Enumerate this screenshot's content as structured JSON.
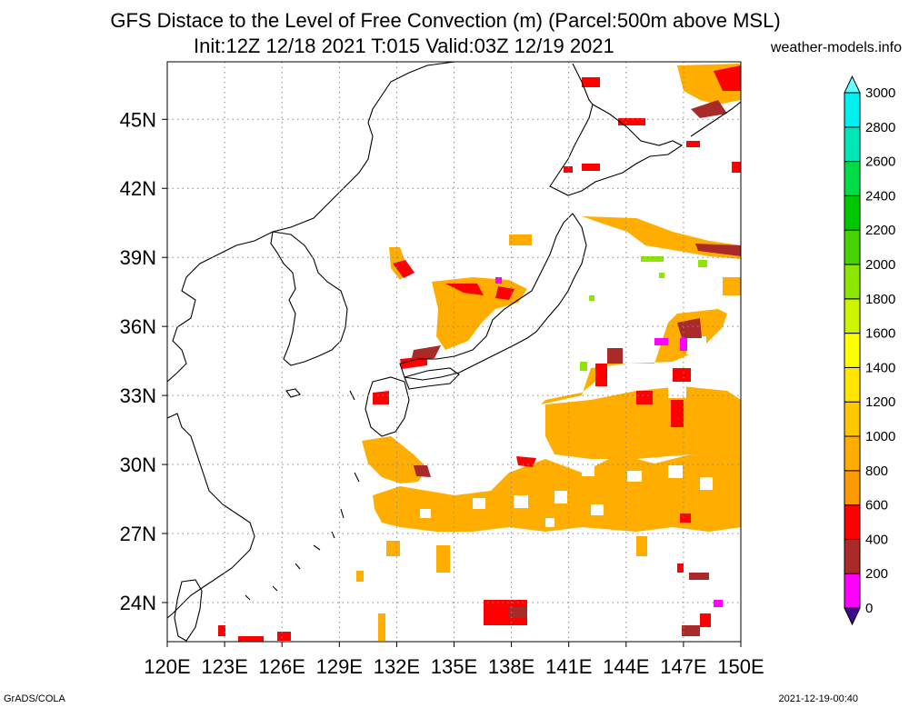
{
  "header": {
    "title": "GFS Distace to the Level of Free Convection (m) (Parcel:500m above MSL)",
    "subtitle": "Init:12Z 12/18 2021 T:015 Valid:03Z 12/19 2021",
    "site": "weather-models.info"
  },
  "footer": {
    "left": "GrADS/COLA",
    "right": "2021-12-19-00:40"
  },
  "map": {
    "lon_range": [
      120,
      150
    ],
    "lat_range": [
      22.3,
      47.5
    ],
    "lon_ticks": [
      "120E",
      "123E",
      "126E",
      "129E",
      "132E",
      "135E",
      "138E",
      "141E",
      "144E",
      "147E",
      "150E"
    ],
    "lat_ticks": [
      "24N",
      "27N",
      "30N",
      "33N",
      "36N",
      "39N",
      "42N",
      "45N"
    ],
    "grid": true
  },
  "colorbar": {
    "labels": [
      "0",
      "200",
      "400",
      "600",
      "800",
      "1000",
      "1200",
      "1400",
      "1600",
      "1800",
      "2000",
      "2200",
      "2400",
      "2600",
      "2800",
      "3000"
    ],
    "colors": [
      "#3c0a8c",
      "#ff00ff",
      "#aa2a2a",
      "#ff0000",
      "#ff9900",
      "#ffae00",
      "#ffc800",
      "#ffe600",
      "#ffff00",
      "#cdf500",
      "#8ce600",
      "#46d200",
      "#00c800",
      "#00dc46",
      "#00e6b4",
      "#00f0f0",
      "#64ffff"
    ]
  }
}
